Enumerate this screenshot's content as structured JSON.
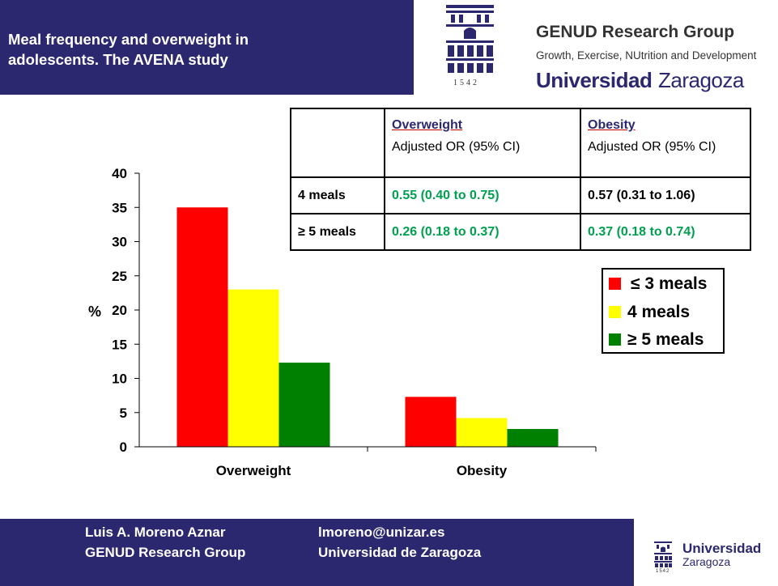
{
  "header": {
    "title": "Meal frequency and overweight in\nadolescents. The AVENA study",
    "band_color": "#2b2870"
  },
  "logo": {
    "group_name": "GENUD Research Group",
    "group_tagline": "Growth, Exercise, NUtrition and Development",
    "university_bold": "Universidad",
    "university_light": "Zaragoza",
    "seal_year": "1542",
    "seal_icon": "university-seal-icon"
  },
  "chart_data": {
    "type": "bar",
    "categories": [
      "Overweight",
      "Obesity"
    ],
    "series": [
      {
        "name": "≤ 3 meals",
        "values": [
          35,
          7.3
        ],
        "color": "#ff0000"
      },
      {
        "name": "4 meals",
        "values": [
          23,
          4.2
        ],
        "color": "#ffff00"
      },
      {
        "name": "≥ 5 meals",
        "values": [
          12.3,
          2.6
        ],
        "color": "#008000"
      }
    ],
    "ylabel": "%",
    "ylim": [
      0,
      40
    ],
    "yticks": [
      "0",
      "5",
      "10",
      "15",
      "20",
      "25",
      "30",
      "35",
      "40"
    ],
    "grid": false,
    "legend_position": "right"
  },
  "or_table": {
    "header": [
      {
        "name": "Overweight",
        "sub": "Adjusted OR (95% CI)"
      },
      {
        "name": "Obesity",
        "sub": "Adjusted OR (95% CI)"
      }
    ],
    "rows": [
      {
        "label": "4 meals",
        "overweight": "0.55 (0.40 to 0.75)",
        "obesity": "0.57 (0.31 to 1.06)"
      },
      {
        "label": "≥ 5 meals",
        "overweight": "0.26 (0.18 to 0.37)",
        "obesity": "0.37 (0.18 to 0.74)"
      }
    ],
    "significant_color": "#00a050"
  },
  "footer": {
    "author": "Luis A. Moreno Aznar",
    "group": "GENUD Research Group",
    "email": "lmoreno@unizar.es",
    "institution": "Universidad de Zaragoza",
    "logo_bold": "Universidad",
    "logo_light": "Zaragoza",
    "logo_year": "1542"
  }
}
